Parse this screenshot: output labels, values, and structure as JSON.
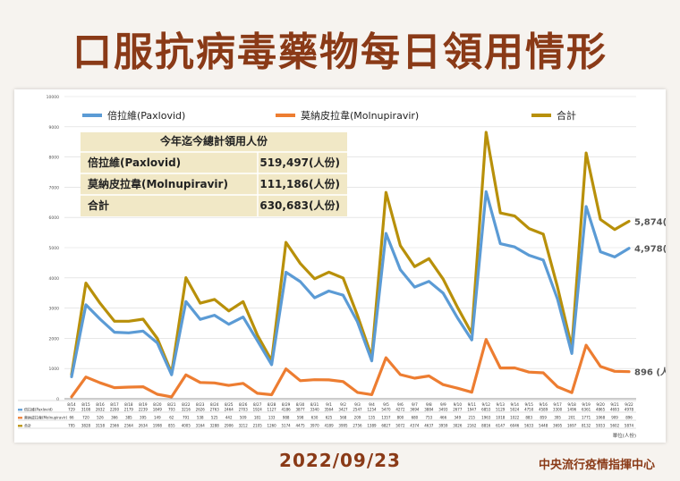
{
  "title": "口服抗病毒藥物每日領用情形",
  "date": "2022/09/23",
  "org": "中央流行疫情指揮中心",
  "unit_label": "單位(人份)",
  "summary": {
    "header": "今年迄今總計領用人份",
    "rows": [
      {
        "name": "倍拉維(Paxlovid)",
        "value": "519,497(人份)"
      },
      {
        "name": "莫納皮拉韋(Molnupiravir)",
        "value": "111,186(人份)"
      },
      {
        "name": "合計",
        "value": "630,683(人份)"
      }
    ]
  },
  "end_labels": [
    "4,978(人份)",
    "896 (人份)",
    "5,874(人份)"
  ],
  "colors": {
    "pax": "#5b9bd5",
    "mol": "#ed7d31",
    "total": "#b8900a",
    "title": "#8a3a17"
  },
  "chart_data": {
    "type": "line",
    "x": [
      "8/14",
      "8/15",
      "8/16",
      "8/17",
      "8/18",
      "8/19",
      "8/20",
      "8/21",
      "8/22",
      "8/23",
      "8/24",
      "8/25",
      "8/26",
      "8/27",
      "8/28",
      "8/29",
      "8/30",
      "8/31",
      "9/1",
      "9/2",
      "9/3",
      "9/4",
      "9/5",
      "9/6",
      "9/7",
      "9/8",
      "9/9",
      "9/10",
      "9/11",
      "9/12",
      "9/13",
      "9/14",
      "9/15",
      "9/16",
      "9/17",
      "9/18",
      "9/19",
      "9/20",
      "9/21",
      "9/22"
    ],
    "ylim": [
      0,
      10000
    ],
    "yticks": [
      0,
      1000,
      2000,
      3000,
      4000,
      5000,
      6000,
      7000,
      8000,
      9000,
      10000
    ],
    "series": [
      {
        "name": "倍拉維(Paxlovid)",
        "table_label": "倍拉維(Paxlovid)",
        "values": [
          729,
          3108,
          2632,
          2200,
          2179,
          2239,
          1849,
          793,
          3216,
          2626,
          2763,
          2464,
          2703,
          1924,
          1127,
          4186,
          3877,
          3340,
          3564,
          3427,
          2547,
          1254,
          5470,
          4272,
          3694,
          3884,
          3493,
          2677,
          1947,
          6853,
          5129,
          5024,
          4750,
          4589,
          3300,
          1496,
          6361,
          4865,
          4693,
          4978
        ]
      },
      {
        "name": "莫納皮拉韋(Molnupiravir)",
        "table_label": "莫納皮拉韋(Molnupiravir)",
        "values": [
          66,
          720,
          526,
          366,
          385,
          395,
          149,
          62,
          791,
          538,
          525,
          442,
          509,
          181,
          133,
          988,
          598,
          630,
          625,
          568,
          209,
          135,
          1357,
          800,
          680,
          753,
          466,
          349,
          215,
          1963,
          1018,
          1022,
          883,
          859,
          395,
          201,
          1771,
          1068,
          909,
          896
        ]
      },
      {
        "name": "合計",
        "table_label": "合計",
        "values": [
          795,
          3828,
          3158,
          2566,
          2564,
          2634,
          1998,
          855,
          4005,
          3164,
          3288,
          2906,
          3212,
          2105,
          1260,
          5174,
          4475,
          3970,
          4189,
          3995,
          2756,
          1389,
          6827,
          5072,
          4374,
          4637,
          3959,
          3026,
          2162,
          8816,
          6147,
          6046,
          5633,
          5448,
          3695,
          1697,
          8132,
          5933,
          5602,
          5874
        ]
      }
    ]
  }
}
